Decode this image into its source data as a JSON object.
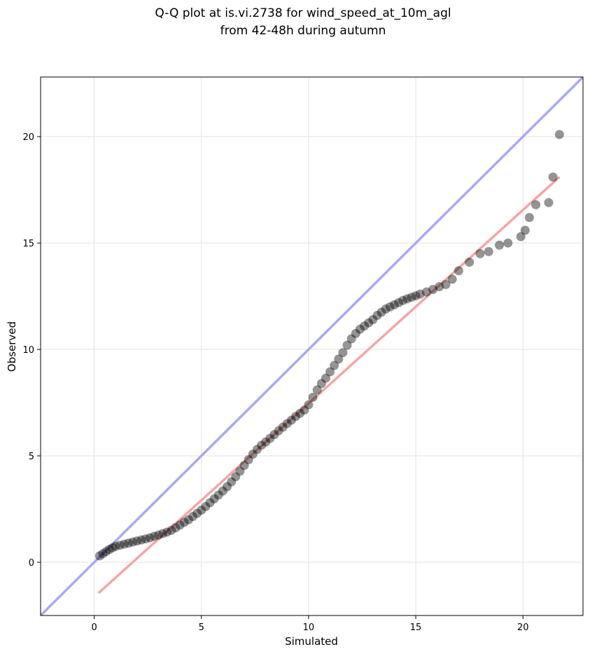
{
  "chart_data": {
    "type": "scatter",
    "title": "Q-Q plot at is.vi.2738 for wind_speed_at_10m_agl",
    "subtitle": "from 42-48h during autumn",
    "xlabel": "Simulated",
    "ylabel": "Observed",
    "xlim": [
      -2.5,
      22.8
    ],
    "ylim": [
      -2.5,
      22.8
    ],
    "xticks": [
      0,
      5,
      10,
      15,
      20
    ],
    "yticks": [
      0,
      5,
      10,
      15,
      20
    ],
    "grid": true,
    "colors": {
      "points": "#000000",
      "identity_line": "#a9a9f2",
      "fit_line": "#f4a6a6",
      "grid": "#ebebeb"
    },
    "reference_lines": [
      {
        "kind": "identity",
        "x": [
          -2.5,
          22.8
        ],
        "y": [
          -2.5,
          22.8
        ]
      },
      {
        "kind": "fit",
        "x": [
          0.2,
          21.7
        ],
        "y": [
          -1.45,
          18.1
        ]
      }
    ],
    "points": {
      "x": [
        0.25,
        0.4,
        0.55,
        0.7,
        0.85,
        1.0,
        1.2,
        1.4,
        1.6,
        1.8,
        2.0,
        2.2,
        2.4,
        2.6,
        2.8,
        3.0,
        3.2,
        3.4,
        3.6,
        3.8,
        4.0,
        4.2,
        4.4,
        4.6,
        4.8,
        5.0,
        5.2,
        5.4,
        5.6,
        5.8,
        6.0,
        6.2,
        6.4,
        6.6,
        6.8,
        7.0,
        7.2,
        7.4,
        7.6,
        7.8,
        8.0,
        8.2,
        8.4,
        8.6,
        8.8,
        9.0,
        9.2,
        9.4,
        9.6,
        9.8,
        10.0,
        10.2,
        10.4,
        10.6,
        10.8,
        11.0,
        11.2,
        11.4,
        11.6,
        11.8,
        12.0,
        12.2,
        12.4,
        12.6,
        12.8,
        13.0,
        13.2,
        13.4,
        13.6,
        13.8,
        14.0,
        14.2,
        14.4,
        14.6,
        14.8,
        15.0,
        15.2,
        15.5,
        15.8,
        16.1,
        16.4,
        16.7,
        17.0,
        17.5,
        18.0,
        18.4,
        18.9,
        19.3,
        19.9,
        20.1,
        20.3,
        20.6,
        21.2,
        21.4,
        21.7
      ],
      "y": [
        0.3,
        0.4,
        0.5,
        0.6,
        0.68,
        0.75,
        0.8,
        0.85,
        0.9,
        0.95,
        1.0,
        1.05,
        1.1,
        1.15,
        1.22,
        1.28,
        1.35,
        1.42,
        1.5,
        1.62,
        1.75,
        1.88,
        2.0,
        2.15,
        2.3,
        2.45,
        2.62,
        2.8,
        2.98,
        3.16,
        3.35,
        3.55,
        3.78,
        4.02,
        4.28,
        4.55,
        4.82,
        5.08,
        5.3,
        5.5,
        5.65,
        5.82,
        6.0,
        6.18,
        6.35,
        6.52,
        6.68,
        6.85,
        7.0,
        7.15,
        7.4,
        7.75,
        8.1,
        8.4,
        8.65,
        8.95,
        9.25,
        9.55,
        9.85,
        10.2,
        10.5,
        10.75,
        10.95,
        11.1,
        11.25,
        11.4,
        11.6,
        11.75,
        11.9,
        12.0,
        12.1,
        12.2,
        12.3,
        12.38,
        12.45,
        12.52,
        12.6,
        12.7,
        12.82,
        12.95,
        13.05,
        13.3,
        13.7,
        14.1,
        14.5,
        14.6,
        14.9,
        15.0,
        15.3,
        15.6,
        16.2,
        16.8,
        16.9,
        18.1,
        20.1
      ]
    }
  }
}
